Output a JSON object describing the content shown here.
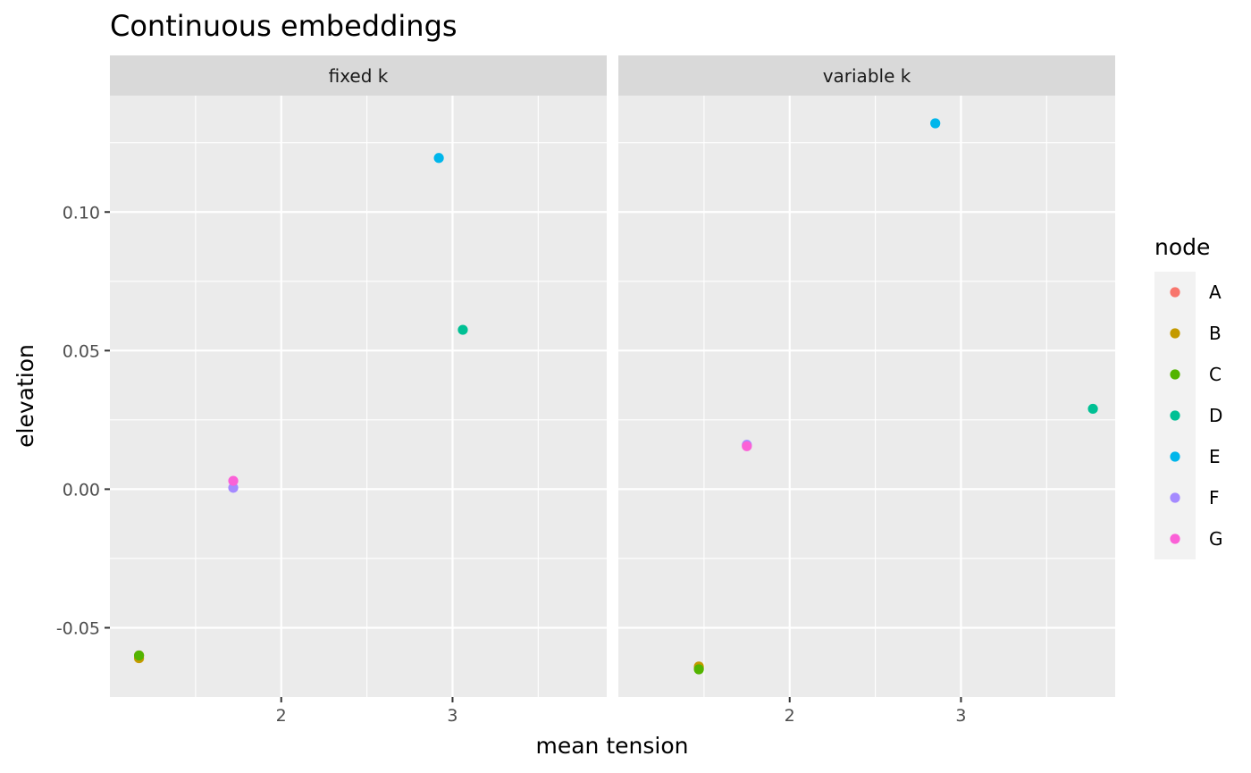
{
  "chart_data": {
    "type": "scatter",
    "title": "Continuous embeddings",
    "xlabel": "mean tension",
    "ylabel": "elevation",
    "xlim": [
      1.0,
      3.9
    ],
    "ylim": [
      -0.075,
      0.142
    ],
    "x_ticks": [
      2,
      3
    ],
    "x_tick_labels": [
      "2",
      "3"
    ],
    "y_ticks": [
      -0.05,
      0.0,
      0.05,
      0.1
    ],
    "y_tick_labels": [
      "-0.05",
      "0.00",
      "0.05",
      "0.10"
    ],
    "grid": true,
    "legend": {
      "title": "node",
      "position": "right",
      "entries": [
        {
          "label": "A",
          "color": "#F8766D"
        },
        {
          "label": "B",
          "color": "#C49A00"
        },
        {
          "label": "C",
          "color": "#53B400"
        },
        {
          "label": "D",
          "color": "#00C094"
        },
        {
          "label": "E",
          "color": "#00B6EB"
        },
        {
          "label": "F",
          "color": "#A58AFF"
        },
        {
          "label": "G",
          "color": "#FB61D7"
        }
      ]
    },
    "panels": [
      {
        "label": "fixed k",
        "points": [
          {
            "node": "A",
            "x": 1.17,
            "y": -0.06
          },
          {
            "node": "B",
            "x": 1.17,
            "y": -0.061
          },
          {
            "node": "C",
            "x": 1.17,
            "y": -0.06
          },
          {
            "node": "D",
            "x": 3.06,
            "y": 0.0575
          },
          {
            "node": "E",
            "x": 2.92,
            "y": 0.1195
          },
          {
            "node": "F",
            "x": 1.72,
            "y": 0.0005
          },
          {
            "node": "G",
            "x": 1.72,
            "y": 0.003
          }
        ]
      },
      {
        "label": "variable k",
        "points": [
          {
            "node": "A",
            "x": 1.47,
            "y": -0.0645
          },
          {
            "node": "B",
            "x": 1.47,
            "y": -0.064
          },
          {
            "node": "C",
            "x": 1.47,
            "y": -0.065
          },
          {
            "node": "D",
            "x": 3.77,
            "y": 0.029
          },
          {
            "node": "E",
            "x": 2.85,
            "y": 0.132
          },
          {
            "node": "F",
            "x": 1.75,
            "y": 0.016
          },
          {
            "node": "G",
            "x": 1.75,
            "y": 0.0155
          }
        ]
      }
    ]
  }
}
